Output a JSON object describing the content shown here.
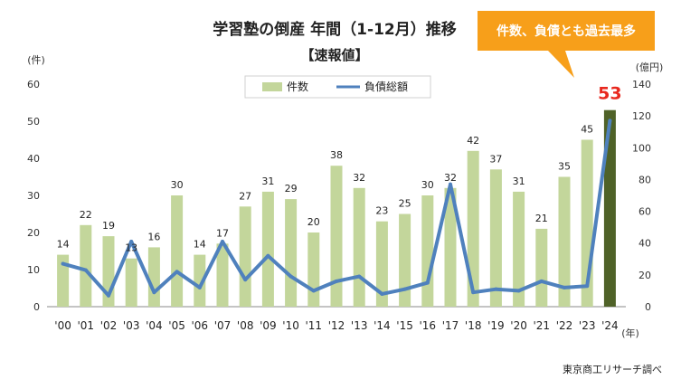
{
  "chart_data": {
    "type": "bar+line",
    "title": "学習塾の倒産 年間（1-12月）推移",
    "subtitle": "【速報値】",
    "categories": [
      "'00",
      "'01",
      "'02",
      "'03",
      "'04",
      "'05",
      "'06",
      "'07",
      "'08",
      "'09",
      "'10",
      "'11",
      "'12",
      "'13",
      "'14",
      "'15",
      "'16",
      "'17",
      "'18",
      "'19",
      "'20",
      "'21",
      "'22",
      "'23",
      "'24"
    ],
    "series": [
      {
        "name": "件数",
        "type": "bar",
        "axis": "left",
        "color": "#c3d69b",
        "highlight_color": "#4f6228",
        "values": [
          14,
          22,
          19,
          13,
          16,
          30,
          14,
          17,
          27,
          31,
          29,
          20,
          38,
          32,
          23,
          25,
          30,
          32,
          42,
          37,
          31,
          21,
          35,
          45,
          53
        ]
      },
      {
        "name": "負債総額",
        "type": "line",
        "axis": "right",
        "color": "#4f81bd",
        "values": [
          27,
          23,
          7,
          41,
          9,
          22,
          12,
          41,
          17,
          32,
          19,
          10,
          16,
          19,
          8,
          11,
          15,
          77,
          9,
          11,
          10,
          16,
          12,
          13,
          117
        ]
      }
    ],
    "highlight_index": 24,
    "y_left": {
      "unit": "(件)",
      "min": 0,
      "max": 60,
      "ticks": [
        0,
        10,
        20,
        30,
        40,
        50,
        60
      ]
    },
    "y_right": {
      "unit": "(億円)",
      "min": 0,
      "max": 140,
      "ticks": [
        0,
        20,
        40,
        60,
        80,
        100,
        120,
        140
      ]
    },
    "x_unit": "(年)",
    "grid": false,
    "legend_position": "top-center"
  },
  "callout": {
    "text": "件数、負債とも過去最多",
    "color": "#f79f1a"
  },
  "source": "東京商工リサーチ調べ"
}
